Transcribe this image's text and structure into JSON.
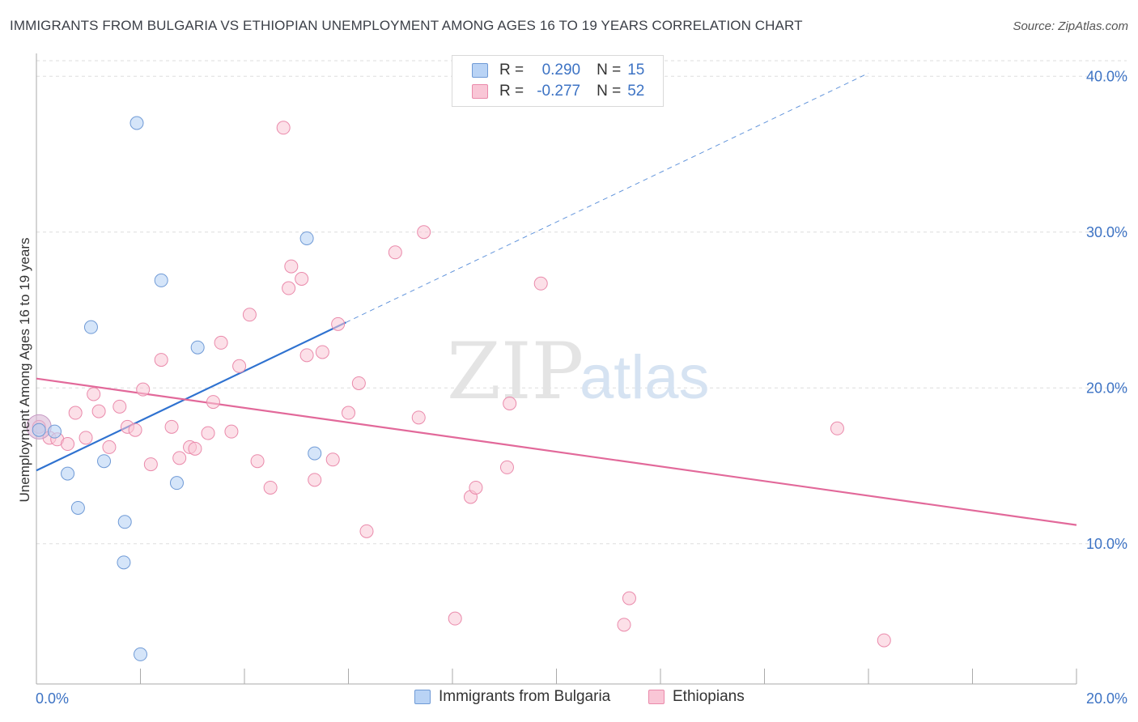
{
  "title": "IMMIGRANTS FROM BULGARIA VS ETHIOPIAN UNEMPLOYMENT AMONG AGES 16 TO 19 YEARS CORRELATION CHART",
  "source": "Source: ZipAtlas.com",
  "watermark": {
    "zip": "ZIP",
    "atlas": "atlas"
  },
  "legend": {
    "r_label": "R =",
    "n_label": "N =",
    "series1": {
      "r": "0.290",
      "n": "15"
    },
    "series2": {
      "r": "-0.277",
      "n": "52"
    }
  },
  "colors": {
    "bulgaria_fill": "#b9d3f5",
    "bulgaria_stroke": "#6f9ad6",
    "bulgaria_line": "#2f72d0",
    "ethiopia_fill": "#f9c6d6",
    "ethiopia_stroke": "#ea8aab",
    "ethiopia_line": "#e2699a",
    "tick_label": "#3d73c4",
    "grid": "#dddddd"
  },
  "chart_data": {
    "type": "scatter",
    "title": "IMMIGRANTS FROM BULGARIA VS ETHIOPIAN UNEMPLOYMENT AMONG AGES 16 TO 19 YEARS CORRELATION CHART",
    "xlabel": "",
    "ylabel": "Unemployment Among Ages 16 to 19 years",
    "xlim": [
      0,
      20
    ],
    "ylim": [
      1.0,
      41.0
    ],
    "x_tick_labels": [
      "0.0%",
      "20.0%"
    ],
    "y_ticks": [
      10,
      20,
      30,
      40
    ],
    "y_tick_labels": [
      "10.0%",
      "20.0%",
      "30.0%",
      "40.0%"
    ],
    "series": [
      {
        "name": "Immigrants from Bulgaria",
        "points": [
          [
            0.05,
            17.3
          ],
          [
            0.35,
            17.2
          ],
          [
            0.6,
            14.5
          ],
          [
            0.8,
            12.3
          ],
          [
            1.05,
            23.9
          ],
          [
            1.3,
            15.3
          ],
          [
            1.7,
            11.4
          ],
          [
            1.68,
            8.8
          ],
          [
            1.93,
            37.0
          ],
          [
            2.0,
            2.9
          ],
          [
            2.4,
            26.9
          ],
          [
            2.7,
            13.9
          ],
          [
            3.1,
            22.6
          ],
          [
            5.2,
            29.6
          ],
          [
            5.35,
            15.8
          ]
        ],
        "trend": {
          "x0": 0.0,
          "y0": 14.7,
          "x1": 5.95,
          "y1": 24.2,
          "dashed_to_x": 16.0,
          "dashed_to_y": 40.2
        }
      },
      {
        "name": "Ethiopians",
        "points": [
          [
            0.05,
            17.5
          ],
          [
            0.25,
            16.8
          ],
          [
            0.4,
            16.7
          ],
          [
            0.6,
            16.4
          ],
          [
            0.75,
            18.4
          ],
          [
            0.95,
            16.8
          ],
          [
            1.1,
            19.6
          ],
          [
            1.2,
            18.5
          ],
          [
            1.4,
            16.2
          ],
          [
            1.6,
            18.8
          ],
          [
            1.75,
            17.5
          ],
          [
            1.9,
            17.3
          ],
          [
            2.05,
            19.9
          ],
          [
            2.2,
            15.1
          ],
          [
            2.4,
            21.8
          ],
          [
            2.6,
            17.5
          ],
          [
            2.75,
            15.5
          ],
          [
            2.95,
            16.2
          ],
          [
            3.05,
            16.1
          ],
          [
            3.3,
            17.1
          ],
          [
            3.4,
            19.1
          ],
          [
            3.55,
            22.9
          ],
          [
            3.75,
            17.2
          ],
          [
            3.9,
            21.4
          ],
          [
            4.1,
            24.7
          ],
          [
            4.25,
            15.3
          ],
          [
            4.5,
            13.6
          ],
          [
            4.75,
            36.7
          ],
          [
            4.85,
            26.4
          ],
          [
            4.9,
            27.8
          ],
          [
            5.1,
            27.0
          ],
          [
            5.2,
            22.1
          ],
          [
            5.35,
            14.1
          ],
          [
            5.5,
            22.3
          ],
          [
            5.7,
            15.4
          ],
          [
            5.8,
            24.1
          ],
          [
            6.0,
            18.4
          ],
          [
            6.2,
            20.3
          ],
          [
            6.35,
            10.8
          ],
          [
            6.9,
            28.7
          ],
          [
            7.35,
            18.1
          ],
          [
            7.45,
            30.0
          ],
          [
            8.05,
            5.2
          ],
          [
            8.35,
            13.0
          ],
          [
            8.45,
            13.6
          ],
          [
            9.05,
            14.9
          ],
          [
            9.1,
            19.0
          ],
          [
            9.7,
            26.7
          ],
          [
            11.3,
            4.8
          ],
          [
            11.4,
            6.5
          ],
          [
            15.4,
            17.4
          ],
          [
            16.3,
            3.8
          ]
        ],
        "trend": {
          "x0": 0.0,
          "y0": 20.6,
          "x1": 20.0,
          "y1": 11.2
        }
      }
    ]
  }
}
